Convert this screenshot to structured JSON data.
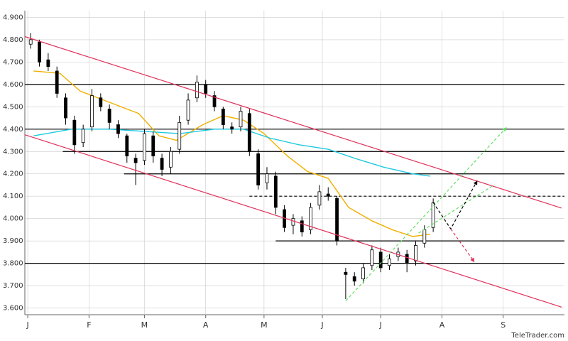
{
  "chart_data": {
    "type": "candlestick",
    "watermark": "TeleTrader.com",
    "x": [
      1,
      4,
      7,
      10,
      13,
      16,
      19,
      22,
      25,
      28,
      31,
      34,
      37,
      40,
      43,
      46,
      49,
      52,
      55,
      58,
      61,
      64,
      67,
      70,
      73,
      76,
      79,
      82,
      85,
      88,
      91,
      94,
      97,
      100,
      103,
      106,
      109,
      112,
      115,
      118,
      121,
      124,
      127,
      130,
      133,
      136,
      139
    ],
    "open": [
      4780,
      4790,
      4710,
      4660,
      4540,
      4440,
      4340,
      4410,
      4540,
      4490,
      4420,
      4370,
      4270,
      4260,
      4370,
      4270,
      4230,
      4310,
      4440,
      4540,
      4600,
      4550,
      4490,
      4410,
      4410,
      4470,
      4290,
      4160,
      4190,
      4040,
      3970,
      3990,
      3950,
      4060,
      4110,
      4090,
      3760,
      3740,
      3730,
      3790,
      3850,
      3790,
      3830,
      3840,
      3810,
      3890,
      3960
    ],
    "high": [
      4830,
      4800,
      4740,
      4680,
      4560,
      4460,
      4420,
      4580,
      4560,
      4510,
      4440,
      4380,
      4290,
      4400,
      4390,
      4290,
      4320,
      4460,
      4560,
      4640,
      4620,
      4570,
      4500,
      4430,
      4500,
      4490,
      4310,
      4230,
      4210,
      4060,
      4020,
      4010,
      4070,
      4150,
      4140,
      4100,
      3780,
      3760,
      3800,
      3880,
      3870,
      3840,
      3870,
      3860,
      3900,
      3970,
      4090
    ],
    "low": [
      4760,
      4680,
      4660,
      4540,
      4420,
      4290,
      4320,
      4390,
      4480,
      4400,
      4360,
      4250,
      4150,
      4240,
      4250,
      4190,
      4200,
      4290,
      4420,
      4520,
      4540,
      4480,
      4400,
      4380,
      4390,
      4280,
      4130,
      4130,
      4020,
      3940,
      3930,
      3920,
      3930,
      4040,
      4080,
      3880,
      3640,
      3700,
      3710,
      3770,
      3760,
      3770,
      3810,
      3760,
      3790,
      3870,
      3940
    ],
    "close": [
      4800,
      4700,
      4680,
      4560,
      4450,
      4330,
      4400,
      4550,
      4500,
      4430,
      4380,
      4280,
      4250,
      4380,
      4280,
      4220,
      4300,
      4430,
      4530,
      4610,
      4560,
      4500,
      4420,
      4400,
      4480,
      4300,
      4150,
      4200,
      4050,
      3960,
      4000,
      3940,
      4050,
      4120,
      4100,
      3900,
      3750,
      3720,
      3780,
      3860,
      3780,
      3820,
      3850,
      3800,
      3880,
      3950,
      4070
    ],
    "averages": [
      {
        "color": "#f0b000",
        "x": [
          2,
          11,
          18,
          28,
          38,
          45,
          51,
          60,
          67,
          74,
          81,
          89,
          96,
          103,
          110,
          118,
          125,
          132,
          138
        ],
        "values": [
          4660,
          4650,
          4570,
          4520,
          4470,
          4370,
          4350,
          4420,
          4460,
          4440,
          4380,
          4280,
          4210,
          4180,
          4050,
          3990,
          3950,
          3920,
          3930
        ]
      },
      {
        "color": "#20c8e0",
        "x": [
          2,
          15,
          28,
          40,
          52,
          64,
          74,
          83,
          93,
          103,
          112,
          122,
          132,
          138
        ],
        "values": [
          4370,
          4400,
          4400,
          4390,
          4380,
          4400,
          4400,
          4360,
          4330,
          4310,
          4270,
          4230,
          4200,
          4190
        ]
      }
    ],
    "levels": [
      {
        "value": 4600,
        "from": -1
      },
      {
        "value": 4400,
        "from": -1
      },
      {
        "value": 4300,
        "from": 12
      },
      {
        "value": 4200,
        "from": 33
      },
      {
        "value": 4100,
        "from": 76,
        "dashed": true
      },
      {
        "value": 3900,
        "from": 85
      },
      {
        "value": 3800,
        "from": -1
      }
    ],
    "trendlines": [
      {
        "color": "#e0305a",
        "x": [
          -1,
          183
        ],
        "values": [
          4814,
          4047
        ]
      },
      {
        "color": "#e0305a",
        "x": [
          -1,
          183
        ],
        "values": [
          4375,
          3604
        ]
      },
      {
        "color": "#60e060",
        "x": [
          109,
          164
        ],
        "values": [
          3632,
          4406
        ],
        "dashed": true,
        "arrow": true
      },
      {
        "color": "#60e060",
        "x": [
          134,
          160
        ],
        "values": [
          3935,
          4152
        ],
        "dashed": true
      },
      {
        "color": "#000000",
        "x": [
          139,
          145,
          154
        ],
        "values": [
          4072,
          3954,
          4167
        ],
        "dashed": true,
        "arrow": true
      },
      {
        "color": "#e0305a",
        "x": [
          145,
          153
        ],
        "values": [
          3954,
          3808
        ],
        "dashed": true,
        "arrow": true
      }
    ],
    "xlim": [
      -1,
      184
    ],
    "xticks": [
      {
        "value": 0,
        "label": "J"
      },
      {
        "value": 21,
        "label": "F"
      },
      {
        "value": 40,
        "label": "M"
      },
      {
        "value": 61,
        "label": "A"
      },
      {
        "value": 81,
        "label": "M"
      },
      {
        "value": 101,
        "label": "J"
      },
      {
        "value": 121,
        "label": "J"
      },
      {
        "value": 142,
        "label": "A"
      },
      {
        "value": 163,
        "label": "S"
      }
    ],
    "ylim": [
      3570,
      4930
    ],
    "yticks": [
      {
        "value": 3600,
        "label": "3.600"
      },
      {
        "value": 3700,
        "label": "3.700"
      },
      {
        "value": 3800,
        "label": "3.800"
      },
      {
        "value": 3900,
        "label": "3.900"
      },
      {
        "value": 4000,
        "label": "4.000"
      },
      {
        "value": 4100,
        "label": "4.100"
      },
      {
        "value": 4200,
        "label": "4.200"
      },
      {
        "value": 4300,
        "label": "4.300"
      },
      {
        "value": 4400,
        "label": "4.400"
      },
      {
        "value": 4500,
        "label": "4.500"
      },
      {
        "value": 4600,
        "label": "4.600"
      },
      {
        "value": 4700,
        "label": "4.700"
      },
      {
        "value": 4800,
        "label": "4.800"
      },
      {
        "value": 4900,
        "label": "4.900"
      }
    ],
    "grid": true
  }
}
